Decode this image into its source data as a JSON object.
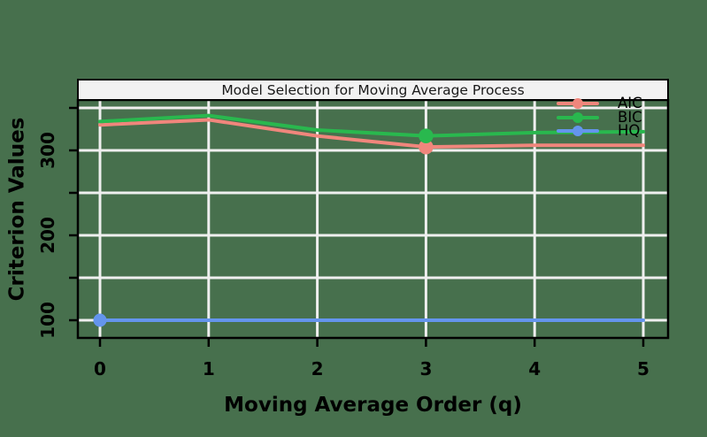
{
  "colors": {
    "background": "#47704D",
    "grid": "#EFEFEF",
    "axis": "#000000",
    "strip_bg": "#F2F2F2",
    "strip_border": "#000000",
    "title_text": "#1A1A1A",
    "label_text": "#000000"
  },
  "chart_data": {
    "type": "line",
    "title": "Model Selection for Moving Average Process",
    "xlabel": "Moving Average Order (q)",
    "ylabel": "Criterion Values",
    "x": [
      0,
      1,
      2,
      3,
      4,
      5
    ],
    "xtick_labels": [
      "0",
      "1",
      "2",
      "3",
      "4",
      "5"
    ],
    "ytick_labels": [
      "100",
      "200",
      "300"
    ],
    "yticks": [
      100,
      200,
      300
    ],
    "grid_y": [
      100,
      150,
      200,
      250,
      300,
      350
    ],
    "xlim": [
      -0.2,
      5.23
    ],
    "ylim": [
      79,
      359
    ],
    "grid": true,
    "legend_position": "top-right-inside",
    "series": [
      {
        "name": "AIC",
        "color": "#F0867C",
        "values": [
          330,
          336,
          317,
          304,
          306,
          306
        ],
        "min_marker_q": 3
      },
      {
        "name": "BIC",
        "color": "#29B84E",
        "values": [
          334,
          341,
          324,
          317,
          321,
          322
        ],
        "min_marker_q": 3
      },
      {
        "name": "HQ",
        "color": "#6495ED",
        "values": [
          100,
          100,
          100,
          100,
          100,
          100
        ],
        "min_marker_q": 0
      }
    ]
  }
}
